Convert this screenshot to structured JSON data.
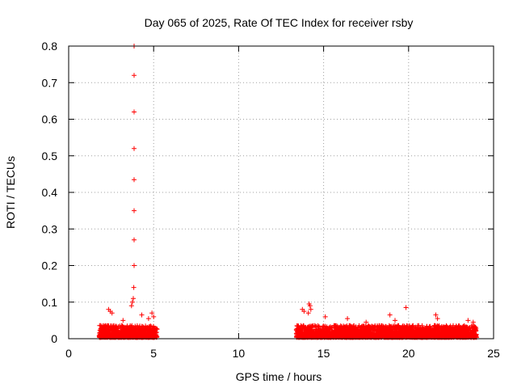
{
  "chart_data": {
    "type": "scatter",
    "title": "Day 065 of 2025, Rate Of TEC Index for receiver rsby",
    "xlabel": "GPS time / hours",
    "ylabel": "ROTI / TECUs",
    "xlim": [
      0,
      25
    ],
    "ylim": [
      0,
      0.8
    ],
    "x_ticks": [
      0,
      5,
      10,
      15,
      20,
      25
    ],
    "x_tick_labels": [
      "0",
      "5",
      "10",
      "15",
      "20",
      "25"
    ],
    "y_ticks": [
      0,
      0.1,
      0.2,
      0.3,
      0.4,
      0.5,
      0.6,
      0.7,
      0.8
    ],
    "y_tick_labels": [
      "0",
      "0.1",
      "0.2",
      "0.3",
      "0.4",
      "0.5",
      "0.6",
      "0.7",
      "0.8"
    ],
    "grid": true,
    "legend": "none",
    "marker": "plus",
    "marker_color": "#ff0000",
    "data_ranges": [
      {
        "x_start": 1.8,
        "x_end": 5.2
      },
      {
        "x_start": 13.4,
        "x_end": 24.0
      }
    ],
    "points": [
      {
        "x": 3.85,
        "y": 0.8
      },
      {
        "x": 3.85,
        "y": 0.72
      },
      {
        "x": 3.85,
        "y": 0.62
      },
      {
        "x": 3.85,
        "y": 0.52
      },
      {
        "x": 3.85,
        "y": 0.435
      },
      {
        "x": 3.85,
        "y": 0.35
      },
      {
        "x": 3.85,
        "y": 0.27
      },
      {
        "x": 3.85,
        "y": 0.2
      },
      {
        "x": 3.83,
        "y": 0.14
      },
      {
        "x": 3.8,
        "y": 0.11
      },
      {
        "x": 3.75,
        "y": 0.1
      },
      {
        "x": 3.7,
        "y": 0.09
      },
      {
        "x": 2.35,
        "y": 0.08
      },
      {
        "x": 2.45,
        "y": 0.075
      },
      {
        "x": 2.55,
        "y": 0.07
      },
      {
        "x": 4.3,
        "y": 0.065
      },
      {
        "x": 4.9,
        "y": 0.07
      },
      {
        "x": 5.0,
        "y": 0.06
      },
      {
        "x": 4.7,
        "y": 0.055
      },
      {
        "x": 3.2,
        "y": 0.05
      },
      {
        "x": 13.75,
        "y": 0.08
      },
      {
        "x": 13.85,
        "y": 0.075
      },
      {
        "x": 14.15,
        "y": 0.095
      },
      {
        "x": 14.2,
        "y": 0.09
      },
      {
        "x": 14.25,
        "y": 0.08
      },
      {
        "x": 14.1,
        "y": 0.07
      },
      {
        "x": 15.1,
        "y": 0.06
      },
      {
        "x": 16.4,
        "y": 0.055
      },
      {
        "x": 17.5,
        "y": 0.045
      },
      {
        "x": 18.9,
        "y": 0.065
      },
      {
        "x": 19.2,
        "y": 0.05
      },
      {
        "x": 19.85,
        "y": 0.085
      },
      {
        "x": 21.6,
        "y": 0.065
      },
      {
        "x": 21.7,
        "y": 0.055
      },
      {
        "x": 23.5,
        "y": 0.05
      },
      {
        "x": 23.8,
        "y": 0.045
      }
    ]
  }
}
